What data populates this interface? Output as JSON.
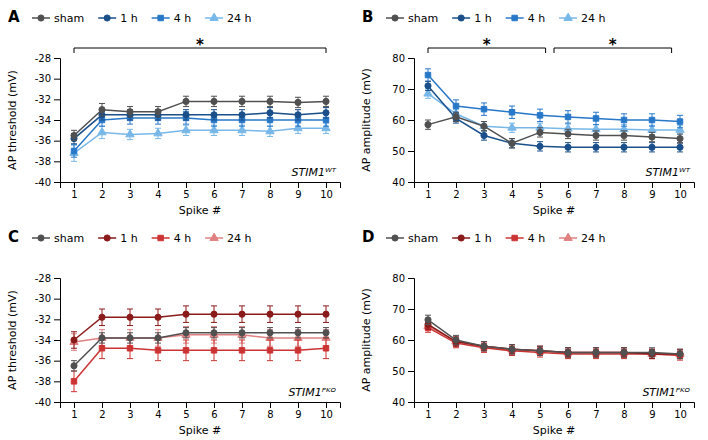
{
  "chart_data": [
    {
      "type": "line",
      "title": "STIM1ᵂᵀ",
      "xlabel": "Spike #",
      "ylabel": "AP threshold (mV)",
      "annotations": [
        "A",
        "*"
      ],
      "x": [
        1,
        2,
        3,
        4,
        5,
        6,
        7,
        8,
        9,
        10
      ],
      "xlim": [
        0.5,
        10.5
      ],
      "xticks": [
        1,
        2,
        3,
        4,
        5,
        6,
        7,
        8,
        9,
        10
      ],
      "ylim": [
        -40,
        -28
      ],
      "yticks": [
        -40,
        -38,
        -36,
        -34,
        -32,
        -30,
        -28
      ],
      "series": [
        {
          "name": "sham",
          "color": "#505050",
          "marker": "circle",
          "values": [
            -35.5,
            -33.0,
            -33.2,
            -33.2,
            -32.2,
            -32.2,
            -32.2,
            -32.2,
            -32.3,
            -32.2
          ],
          "errors": [
            0.5,
            0.6,
            0.5,
            0.5,
            0.5,
            0.5,
            0.5,
            0.5,
            0.5,
            0.5
          ]
        },
        {
          "name": "1 h",
          "color": "#1a4f8a",
          "marker": "circle",
          "values": [
            -35.8,
            -33.5,
            -33.5,
            -33.5,
            -33.5,
            -33.5,
            -33.5,
            -33.3,
            -33.5,
            -33.3
          ],
          "errors": [
            0.5,
            0.5,
            0.5,
            0.5,
            0.5,
            0.5,
            0.5,
            0.5,
            0.5,
            0.5
          ]
        },
        {
          "name": "4 h",
          "color": "#2878c8",
          "marker": "square",
          "values": [
            -37.0,
            -34.0,
            -33.8,
            -33.8,
            -33.8,
            -34.0,
            -34.0,
            -34.0,
            -34.0,
            -34.0
          ],
          "errors": [
            0.6,
            0.6,
            0.6,
            0.6,
            0.6,
            0.6,
            0.6,
            0.6,
            0.6,
            0.6
          ]
        },
        {
          "name": "24 h",
          "color": "#78b8e8",
          "marker": "triangle",
          "values": [
            -37.2,
            -35.2,
            -35.4,
            -35.3,
            -35.0,
            -35.0,
            -35.0,
            -35.1,
            -34.8,
            -34.8
          ],
          "errors": [
            0.8,
            0.6,
            0.5,
            0.5,
            0.5,
            0.5,
            0.5,
            0.5,
            0.5,
            0.5
          ]
        }
      ]
    },
    {
      "type": "line",
      "title": "STIM1ᵂᵀ",
      "xlabel": "Spike #",
      "ylabel": "AP amplitude (mV)",
      "annotations": [
        "B",
        "*",
        "*"
      ],
      "x": [
        1,
        2,
        3,
        4,
        5,
        6,
        7,
        8,
        9,
        10
      ],
      "xlim": [
        0.5,
        10.5
      ],
      "xticks": [
        1,
        2,
        3,
        4,
        5,
        6,
        7,
        8,
        9,
        10
      ],
      "ylim": [
        40,
        80
      ],
      "yticks": [
        40,
        50,
        60,
        70,
        80
      ],
      "series": [
        {
          "name": "sham",
          "color": "#505050",
          "marker": "circle",
          "values": [
            58.5,
            61.0,
            58.0,
            52.5,
            56.0,
            55.5,
            55.0,
            55.0,
            54.5,
            54.0
          ],
          "errors": [
            1.5,
            1.5,
            1.5,
            1.5,
            1.5,
            1.5,
            1.5,
            1.5,
            1.5,
            1.5
          ]
        },
        {
          "name": "1 h",
          "color": "#1a4f8a",
          "marker": "circle",
          "values": [
            71.0,
            60.5,
            55.0,
            52.5,
            51.5,
            51.2,
            51.2,
            51.2,
            51.2,
            51.2
          ],
          "errors": [
            1.5,
            1.5,
            1.5,
            1.5,
            1.5,
            1.5,
            1.5,
            1.5,
            1.5,
            1.5
          ]
        },
        {
          "name": "4 h",
          "color": "#2878c8",
          "marker": "square",
          "values": [
            74.5,
            64.5,
            63.5,
            62.5,
            61.5,
            61.0,
            60.5,
            60.0,
            60.0,
            59.5
          ],
          "errors": [
            2.0,
            2.0,
            2.0,
            2.0,
            2.0,
            2.0,
            2.0,
            2.0,
            2.0,
            2.0
          ]
        },
        {
          "name": "24 h",
          "color": "#78b8e8",
          "marker": "triangle",
          "values": [
            68.5,
            62.0,
            58.0,
            57.5,
            57.5,
            57.2,
            57.0,
            57.0,
            56.8,
            56.8
          ],
          "errors": [
            1.5,
            1.5,
            1.5,
            1.5,
            1.5,
            1.5,
            1.5,
            1.5,
            1.5,
            1.5
          ]
        }
      ]
    },
    {
      "type": "line",
      "title": "STIM1ᴾᴷᴼ",
      "xlabel": "Spike #",
      "ylabel": "AP threshold (mV)",
      "annotations": [
        "C"
      ],
      "x": [
        1,
        2,
        3,
        4,
        5,
        6,
        7,
        8,
        9,
        10
      ],
      "xlim": [
        0.5,
        10.5
      ],
      "xticks": [
        1,
        2,
        3,
        4,
        5,
        6,
        7,
        8,
        9,
        10
      ],
      "ylim": [
        -40,
        -28
      ],
      "yticks": [
        -40,
        -38,
        -36,
        -34,
        -32,
        -30,
        -28
      ],
      "series": [
        {
          "name": "sham",
          "color": "#505050",
          "marker": "circle",
          "values": [
            -36.5,
            -33.8,
            -33.8,
            -33.8,
            -33.3,
            -33.3,
            -33.3,
            -33.3,
            -33.3,
            -33.3
          ],
          "errors": [
            0.5,
            0.5,
            0.5,
            0.5,
            0.5,
            0.5,
            0.5,
            0.5,
            0.5,
            0.5
          ]
        },
        {
          "name": "1 h",
          "color": "#8b1a1a",
          "marker": "circle",
          "values": [
            -34.0,
            -31.8,
            -31.8,
            -31.8,
            -31.5,
            -31.5,
            -31.5,
            -31.5,
            -31.5,
            -31.5
          ],
          "errors": [
            0.8,
            0.8,
            0.8,
            0.8,
            0.8,
            0.8,
            0.8,
            0.8,
            0.8,
            0.8
          ]
        },
        {
          "name": "4 h",
          "color": "#cc3333",
          "marker": "square",
          "values": [
            -38.0,
            -34.8,
            -34.8,
            -35.0,
            -35.0,
            -35.0,
            -35.0,
            -35.0,
            -35.0,
            -34.8
          ],
          "errors": [
            1.0,
            1.0,
            1.0,
            1.0,
            1.0,
            1.0,
            1.0,
            1.0,
            1.0,
            1.0
          ]
        },
        {
          "name": "24 h",
          "color": "#e08080",
          "marker": "triangle",
          "values": [
            -34.2,
            -33.8,
            -33.8,
            -33.8,
            -33.5,
            -33.5,
            -33.5,
            -33.8,
            -33.8,
            -33.8
          ],
          "errors": [
            0.8,
            0.8,
            0.8,
            0.8,
            0.8,
            0.8,
            0.8,
            0.8,
            0.8,
            0.8
          ]
        }
      ]
    },
    {
      "type": "line",
      "title": "STIM1ᴾᴷᴼ",
      "xlabel": "Spike #",
      "ylabel": "AP amplitude (mV)",
      "annotations": [
        "D"
      ],
      "x": [
        1,
        2,
        3,
        4,
        5,
        6,
        7,
        8,
        9,
        10
      ],
      "xlim": [
        0.5,
        10.5
      ],
      "xticks": [
        1,
        2,
        3,
        4,
        5,
        6,
        7,
        8,
        9,
        10
      ],
      "ylim": [
        40,
        80
      ],
      "yticks": [
        40,
        50,
        60,
        70,
        80
      ],
      "series": [
        {
          "name": "sham",
          "color": "#505050",
          "marker": "circle",
          "values": [
            66.5,
            60.0,
            58.0,
            57.0,
            56.5,
            56.0,
            56.0,
            56.0,
            56.0,
            55.5
          ],
          "errors": [
            1.5,
            1.5,
            1.5,
            1.5,
            1.5,
            1.5,
            1.5,
            1.5,
            1.5,
            1.5
          ]
        },
        {
          "name": "1 h",
          "color": "#8b1a1a",
          "marker": "circle",
          "values": [
            65.0,
            59.5,
            58.0,
            57.0,
            56.5,
            56.0,
            56.0,
            56.0,
            55.5,
            55.5
          ],
          "errors": [
            1.5,
            1.5,
            1.5,
            1.5,
            1.5,
            1.5,
            1.5,
            1.5,
            1.5,
            1.5
          ]
        },
        {
          "name": "4 h",
          "color": "#cc3333",
          "marker": "square",
          "values": [
            64.0,
            59.0,
            57.5,
            56.5,
            56.0,
            55.5,
            55.5,
            55.5,
            55.5,
            55.0
          ],
          "errors": [
            1.5,
            1.5,
            1.5,
            1.5,
            1.5,
            1.5,
            1.5,
            1.5,
            1.5,
            1.5
          ]
        },
        {
          "name": "24 h",
          "color": "#e08080",
          "marker": "triangle",
          "values": [
            64.5,
            59.5,
            58.0,
            57.0,
            56.5,
            56.0,
            56.0,
            56.0,
            55.5,
            55.5
          ],
          "errors": [
            1.5,
            1.5,
            1.5,
            1.5,
            1.5,
            1.5,
            1.5,
            1.5,
            1.5,
            1.5
          ]
        }
      ]
    }
  ]
}
